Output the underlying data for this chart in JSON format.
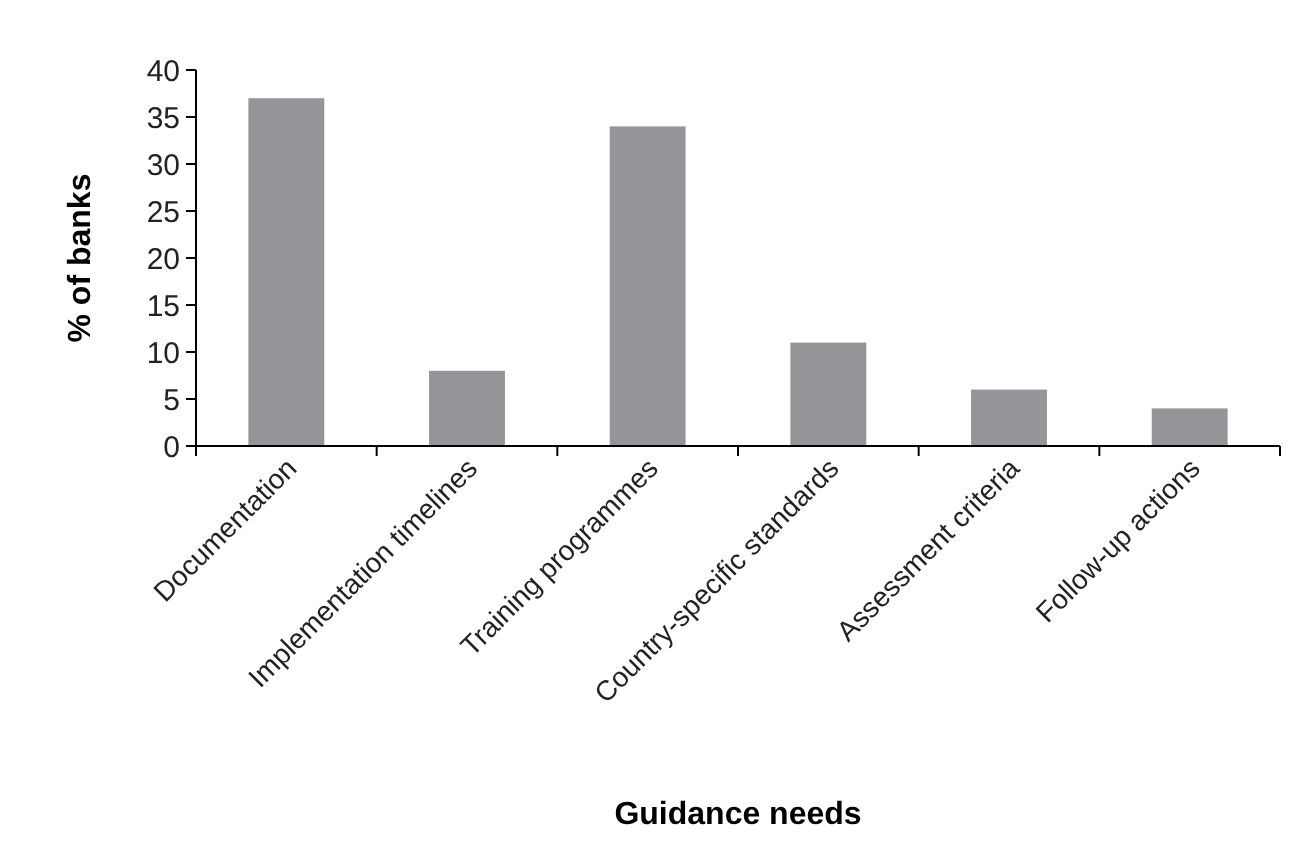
{
  "chart_data": {
    "type": "bar",
    "xlabel": "Guidance needs",
    "ylabel": "% of banks",
    "categories": [
      "Documentation",
      "Implementation timelines",
      "Training programmes",
      "Country-specific standards",
      "Assessment criteria",
      "Follow-up actions"
    ],
    "values": [
      37,
      8,
      34,
      11,
      6,
      4
    ],
    "color": "#939598",
    "ylim": [
      0,
      40
    ],
    "yticks": [
      0,
      5,
      10,
      15,
      20,
      25,
      30,
      35,
      40
    ],
    "grid": false
  }
}
